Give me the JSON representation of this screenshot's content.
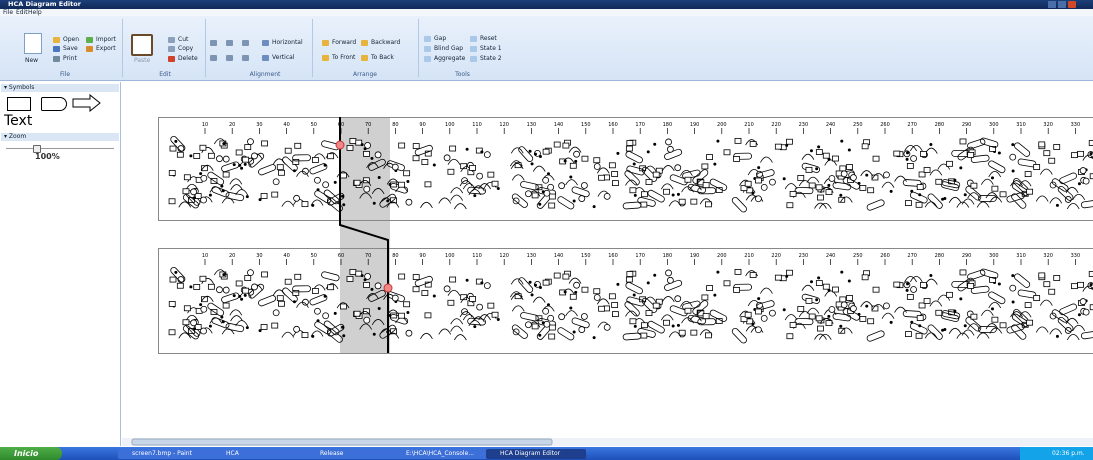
{
  "window": {
    "title": "HCA Diagram Editor"
  },
  "menu": [
    "File",
    "Edit",
    "Help"
  ],
  "ribbon": {
    "file": {
      "label": "File",
      "new": "New",
      "open": "Open",
      "save": "Save",
      "print": "Print",
      "import": "Import",
      "export": "Export"
    },
    "edit": {
      "label": "Edit",
      "paste": "Paste",
      "cut": "Cut",
      "copy": "Copy",
      "delete": "Delete"
    },
    "alignment": {
      "label": "Alignment",
      "horizontal": "Horizontal",
      "vertical": "Vertical"
    },
    "arrange": {
      "label": "Arrange",
      "forward": "Forward",
      "backward": "Backward",
      "to_front": "To Front",
      "to_back": "To Back"
    },
    "tools": {
      "label": "Tools",
      "gap": "Gap",
      "blind_gap": "Blind Gap",
      "aggregate": "Aggregate",
      "reset": "Reset",
      "state_1": "State 1",
      "state_2": "State 2"
    }
  },
  "sidebar": {
    "symbols": "Symbols",
    "text": "Text",
    "zoom": "Zoom",
    "zoom_value": "100%"
  },
  "ruler_ticks": [
    "10",
    "20",
    "30",
    "40",
    "50",
    "60",
    "70",
    "80",
    "90",
    "100",
    "110",
    "120",
    "130",
    "140",
    "150",
    "160",
    "170",
    "180",
    "190",
    "200",
    "210",
    "220",
    "230",
    "240",
    "250",
    "260",
    "270",
    "280",
    "290",
    "300",
    "310",
    "320",
    "330"
  ],
  "taskbar": {
    "start": "Inicio",
    "items": [
      "screen7.bmp - Paint",
      "HCA",
      "Release",
      "E:\\HCA\\HCA_Console...",
      "HCA Diagram Editor"
    ],
    "clock": "02:36 p.m."
  }
}
